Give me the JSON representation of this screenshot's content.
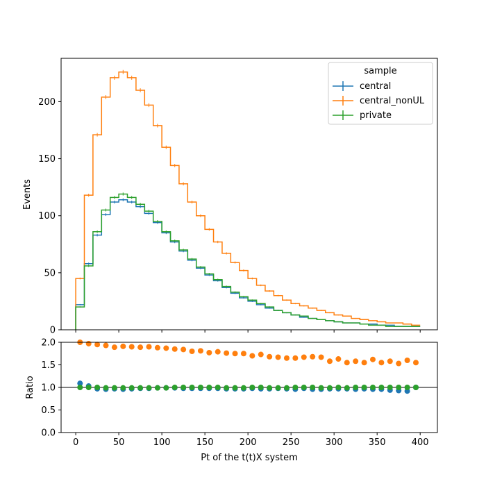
{
  "colors": {
    "central": "#1f77b4",
    "central_nonUL": "#ff7f0e",
    "private": "#2ca02c"
  },
  "chart_data": [
    {
      "type": "histogram-step",
      "xlabel": "",
      "ylabel": "Events",
      "xlim": [
        -17,
        420
      ],
      "ylim": [
        0,
        238
      ],
      "xticks": [
        0,
        50,
        100,
        150,
        200,
        250,
        300,
        350,
        400
      ],
      "yticks": [
        0,
        50,
        100,
        150,
        200
      ],
      "bin_edges": [
        0,
        10,
        20,
        30,
        40,
        50,
        60,
        70,
        80,
        90,
        100,
        110,
        120,
        130,
        140,
        150,
        160,
        170,
        180,
        190,
        200,
        210,
        220,
        230,
        240,
        250,
        260,
        270,
        280,
        290,
        300,
        310,
        320,
        330,
        340,
        350,
        360,
        370,
        380,
        390,
        400
      ],
      "legend": {
        "title": "sample",
        "placement": "top-right"
      },
      "series": [
        {
          "name": "central",
          "color": "#1f77b4",
          "values": [
            22,
            58,
            83,
            101,
            112,
            114,
            112,
            108,
            102,
            94,
            85,
            77,
            69,
            61,
            54,
            48,
            43,
            37,
            32,
            28,
            25,
            22,
            19,
            17,
            15,
            13,
            11,
            10,
            9,
            8,
            7,
            6,
            6,
            5,
            5,
            4,
            4,
            3,
            3,
            3
          ]
        },
        {
          "name": "central_nonUL",
          "color": "#ff7f0e",
          "values": [
            45,
            118,
            171,
            204,
            221,
            226,
            221,
            210,
            197,
            179,
            160,
            144,
            128,
            112,
            100,
            88,
            77,
            67,
            59,
            52,
            45,
            39,
            34,
            30,
            26,
            23,
            21,
            19,
            17,
            15,
            13,
            12,
            10,
            9,
            8,
            7,
            6,
            6,
            5,
            4
          ]
        },
        {
          "name": "private",
          "color": "#2ca02c",
          "values": [
            20,
            56,
            86,
            105,
            116,
            119,
            116,
            110,
            104,
            95,
            86,
            78,
            70,
            62,
            55,
            49,
            44,
            38,
            33,
            29,
            26,
            23,
            20,
            17,
            15,
            13,
            12,
            10,
            9,
            8,
            7,
            6,
            6,
            5,
            4,
            4,
            3,
            3,
            3,
            3
          ]
        }
      ]
    },
    {
      "type": "scatter",
      "xlabel": "Pt of the t(t)X system",
      "ylabel": "Ratio",
      "xlim": [
        -17,
        420
      ],
      "ylim": [
        0.0,
        2.0
      ],
      "xticks": [
        0,
        50,
        100,
        150,
        200,
        250,
        300,
        350,
        400
      ],
      "yticks": [
        "0.0",
        "0.5",
        "1.0",
        "1.5",
        "2.0"
      ],
      "reference_line": 1.0,
      "x": [
        5,
        15,
        25,
        35,
        45,
        55,
        65,
        75,
        85,
        95,
        105,
        115,
        125,
        135,
        145,
        155,
        165,
        175,
        185,
        195,
        205,
        215,
        225,
        235,
        245,
        255,
        265,
        275,
        285,
        295,
        305,
        315,
        325,
        335,
        345,
        355,
        365,
        375,
        385,
        395
      ],
      "series": [
        {
          "name": "central",
          "color": "#1f77b4",
          "values": [
            1.09,
            1.03,
            0.97,
            0.96,
            0.97,
            0.96,
            0.97,
            0.98,
            0.98,
            0.99,
            0.99,
            0.99,
            0.98,
            0.98,
            0.98,
            0.98,
            0.98,
            0.97,
            0.97,
            0.97,
            0.98,
            0.97,
            0.97,
            0.98,
            0.97,
            0.96,
            0.98,
            0.96,
            0.96,
            0.97,
            0.97,
            0.97,
            0.96,
            0.97,
            0.96,
            0.96,
            0.94,
            0.93,
            0.92,
            1.0
          ]
        },
        {
          "name": "central_nonUL",
          "color": "#ff7f0e",
          "values": [
            2.0,
            1.97,
            1.95,
            1.93,
            1.89,
            1.91,
            1.9,
            1.89,
            1.9,
            1.88,
            1.87,
            1.85,
            1.84,
            1.8,
            1.81,
            1.77,
            1.79,
            1.76,
            1.75,
            1.75,
            1.7,
            1.73,
            1.68,
            1.67,
            1.65,
            1.65,
            1.67,
            1.68,
            1.67,
            1.58,
            1.63,
            1.55,
            1.58,
            1.55,
            1.62,
            1.55,
            1.58,
            1.53,
            1.6,
            1.55
          ]
        },
        {
          "name": "private",
          "color": "#2ca02c",
          "values": [
            1.0,
            1.0,
            1.0,
            0.99,
            0.99,
            0.99,
            0.99,
            0.99,
            0.99,
            0.99,
            0.99,
            1.0,
            1.0,
            1.0,
            1.0,
            1.0,
            1.0,
            0.99,
            0.99,
            0.99,
            1.0,
            1.0,
            0.99,
            0.99,
            0.99,
            1.0,
            1.0,
            1.0,
            0.99,
            0.99,
            1.0,
            0.99,
            1.0,
            1.0,
            1.0,
            1.0,
            1.0,
            1.0,
            1.0,
            1.0
          ]
        }
      ]
    }
  ]
}
